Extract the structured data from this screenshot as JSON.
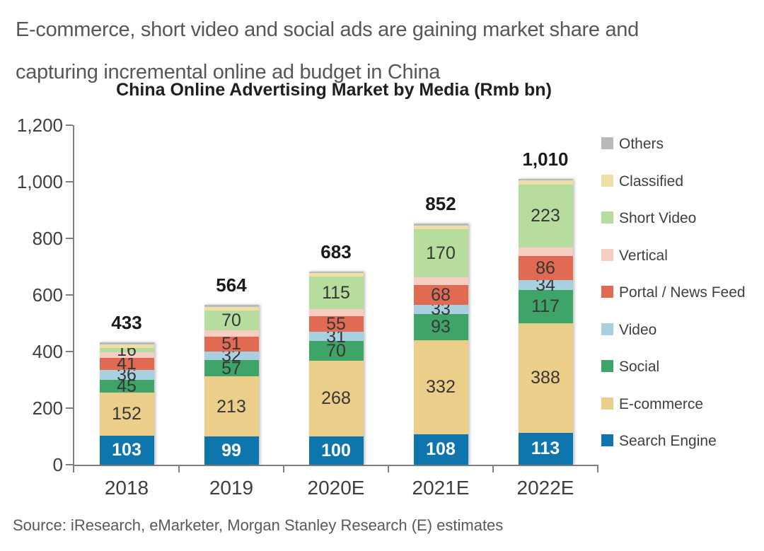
{
  "headline": {
    "line1": "E-commerce, short video and social ads are gaining market share and",
    "line2": "capturing incremental online ad budget in China"
  },
  "source_note": "Source: iResearch, eMarketer, Morgan Stanley Research (E) estimates",
  "colors": {
    "axis": "#7f7f7f",
    "headline_text": "#56575b",
    "title_text": "#1f1f1f",
    "axis_text": "#3f3f3f",
    "segment_label": "#373737",
    "total_label": "#1a1a1a",
    "legend_text": "#3f3f3f",
    "source_text": "#595959"
  },
  "chart_data": {
    "type": "bar",
    "stacked": true,
    "title": "China Online Advertising Market by Media (Rmb bn)",
    "categories": [
      "2018",
      "2019",
      "2020E",
      "2021E",
      "2022E"
    ],
    "totals": [
      433,
      564,
      683,
      852,
      1010
    ],
    "total_labels": [
      "433",
      "564",
      "683",
      "852",
      "1,010"
    ],
    "ylim": [
      0,
      1200
    ],
    "ytick_step": 200,
    "ytick_labels": [
      "0",
      "200",
      "400",
      "600",
      "800",
      "1,000",
      "1,200"
    ],
    "grid": false,
    "legend_position": "right",
    "series": [
      {
        "name": "Search Engine",
        "color": "#0e76ad",
        "values": [
          103,
          99,
          100,
          108,
          113
        ],
        "value_labels_shown": true,
        "label_color": "#ffffff",
        "label_bold": true
      },
      {
        "name": "E-commerce",
        "color": "#eace8a",
        "values": [
          152,
          213,
          268,
          332,
          388
        ],
        "value_labels_shown": true
      },
      {
        "name": "Social",
        "color": "#3fa468",
        "values": [
          45,
          57,
          70,
          93,
          117
        ],
        "value_labels_shown": true
      },
      {
        "name": "Video",
        "color": "#a7d1e1",
        "values": [
          36,
          32,
          31,
          33,
          34
        ],
        "value_labels_shown": true
      },
      {
        "name": "Portal / News Feed",
        "color": "#e16a52",
        "values": [
          41,
          51,
          55,
          68,
          86
        ],
        "value_labels_shown": true
      },
      {
        "name": "Vertical",
        "color": "#f6cfc2",
        "values": [
          20,
          23,
          25,
          28,
          30
        ],
        "value_labels_shown": false,
        "estimated": true
      },
      {
        "name": "Short Video",
        "color": "#b6dd9e",
        "values": [
          16,
          70,
          115,
          170,
          223
        ],
        "value_labels_shown": true
      },
      {
        "name": "Classified",
        "color": "#f0dfa5",
        "values": [
          13,
          13,
          13,
          14,
          13
        ],
        "value_labels_shown": false,
        "estimated": true
      },
      {
        "name": "Others",
        "color": "#bababa",
        "values": [
          7,
          6,
          6,
          6,
          6
        ],
        "value_labels_shown": false,
        "estimated": true
      }
    ],
    "legend_order_top_to_bottom": [
      "Others",
      "Classified",
      "Short Video",
      "Vertical",
      "Portal / News Feed",
      "Video",
      "Social",
      "E-commerce",
      "Search Engine"
    ]
  }
}
